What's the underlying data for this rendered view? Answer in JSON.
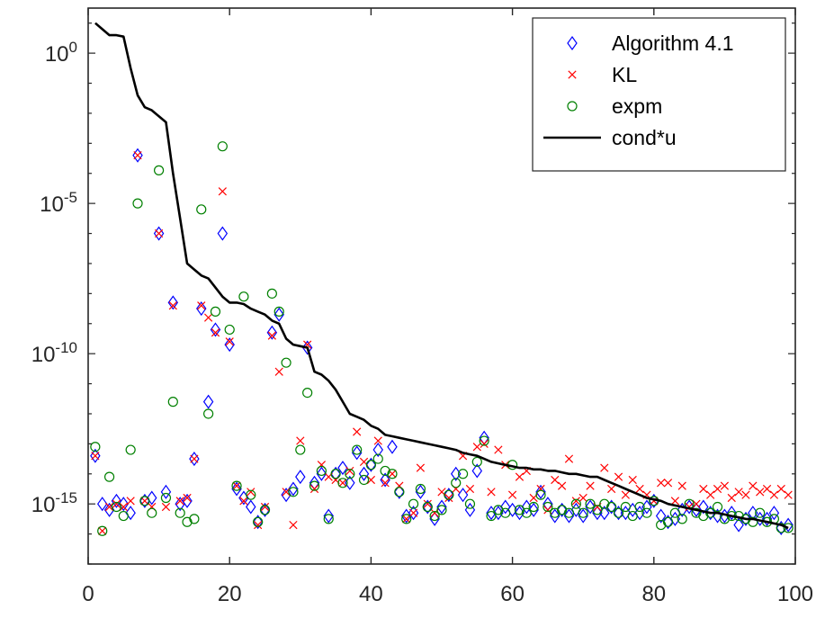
{
  "chart_data": {
    "type": "scatter",
    "title": "",
    "xlabel": "",
    "ylabel": "",
    "xlim": [
      0,
      100
    ],
    "ylim_log10": [
      -17,
      1.5
    ],
    "y_scale": "log",
    "grid": false,
    "legend_position": "top-right",
    "x_tick_labels": [
      "0",
      "20",
      "40",
      "60",
      "80",
      "100"
    ],
    "y_tick_labels": [
      {
        "base": "10",
        "exp": "0"
      },
      {
        "base": "10",
        "exp": "-5"
      },
      {
        "base": "10",
        "exp": "-10"
      },
      {
        "base": "10",
        "exp": "-15"
      }
    ],
    "series": [
      {
        "name": "Algorithm 4.1",
        "marker": "diamond",
        "color": "#0000ff",
        "log10_values": [
          -13.4,
          -15.0,
          -15.2,
          -14.9,
          -15.0,
          -15.3,
          -3.4,
          -14.9,
          -14.8,
          -6.0,
          -14.6,
          -8.3,
          -15.0,
          -14.9,
          -13.5,
          -8.5,
          -11.6,
          -9.2,
          -6.0,
          -9.7,
          -14.5,
          -14.8,
          -15.1,
          -15.6,
          -15.2,
          -9.3,
          -8.7,
          -14.7,
          -14.5,
          -14.1,
          -9.8,
          -14.3,
          -14.0,
          -15.4,
          -14.0,
          -13.8,
          -14.3,
          -13.3,
          -14.0,
          -13.7,
          -13.2,
          -14.2,
          -13.1,
          -14.6,
          -15.4,
          -15.3,
          -14.6,
          -15.1,
          -15.5,
          -15.1,
          -14.7,
          -14.0,
          -14.7,
          -15.2,
          -13.9,
          -12.8,
          -15.3,
          -15.3,
          -15.1,
          -15.2,
          -15.3,
          -15.1,
          -15.2,
          -14.6,
          -15.0,
          -15.4,
          -15.2,
          -15.4,
          -15.2,
          -15.4,
          -15.1,
          -15.3,
          -15.3,
          -15.1,
          -15.3,
          -15.3,
          -15.2,
          -15.3,
          -15.1,
          -14.9,
          -15.4,
          -15.6,
          -15.5,
          -15.2,
          -15.1,
          -15.2,
          -15.1,
          -15.3,
          -15.4,
          -15.4,
          -15.3,
          -15.7,
          -15.5,
          -15.3,
          -15.5,
          -15.5,
          -15.3,
          -15.8,
          -15.7
        ],
        "log10_values_by_x": {}
      },
      {
        "name": "KL",
        "marker": "x",
        "color": "#ff0000",
        "log10_values": [
          -13.4,
          -15.9,
          -15.1,
          -15.0,
          -15.1,
          -14.9,
          -3.4,
          -14.9,
          -15.1,
          -6.0,
          -15.1,
          -8.4,
          -14.9,
          -14.8,
          -13.5,
          -8.4,
          -8.8,
          -9.3,
          -4.6,
          -9.6,
          -14.4,
          -14.9,
          -14.6,
          -15.7,
          -15.1,
          -9.4,
          -10.6,
          -14.6,
          -15.7,
          -12.9,
          -9.7,
          -14.5,
          -13.7,
          -14.1,
          -14.2,
          -14.3,
          -13.9,
          -12.6,
          -13.6,
          -14.2,
          -12.9,
          -14.3,
          -14.0,
          -14.4,
          -15.5,
          -15.3,
          -13.8,
          -15.0,
          -15.3,
          -14.6,
          -14.8,
          -14.5,
          -13.4,
          -14.5,
          -13.1,
          -13.0,
          -14.6,
          -13.2,
          -13.7,
          -14.7,
          -14.1,
          -13.9,
          -14.8,
          -14.5,
          -15.2,
          -14.2,
          -14.4,
          -13.5,
          -14.9,
          -14.8,
          -14.4,
          -15.1,
          -13.8,
          -14.5,
          -14.1,
          -14.7,
          -14.2,
          -14.5,
          -14.7,
          -14.9,
          -14.3,
          -14.3,
          -14.9,
          -14.4,
          -15.1,
          -15.0,
          -14.5,
          -14.7,
          -14.5,
          -14.4,
          -14.8,
          -14.6,
          -14.7,
          -14.4,
          -14.6,
          -14.5,
          -14.7,
          -14.5,
          -14.7
        ],
        "log10_values_by_x": {}
      },
      {
        "name": "expm",
        "marker": "circle",
        "color": "#008000",
        "log10_values": [
          -13.1,
          -15.9,
          -14.1,
          -15.1,
          -15.4,
          -13.2,
          -5.0,
          -14.9,
          -15.3,
          -3.9,
          -14.8,
          -11.6,
          -15.3,
          -15.6,
          -15.5,
          -5.2,
          -12.0,
          -8.6,
          -3.1,
          -9.2,
          -14.4,
          -8.1,
          -14.7,
          -15.6,
          -15.2,
          -8.0,
          -8.6,
          -10.3,
          -14.6,
          -13.2,
          -11.3,
          -14.4,
          -13.9,
          -15.5,
          -14.0,
          -14.3,
          -14.0,
          -13.2,
          -14.2,
          -13.7,
          -13.5,
          -13.9,
          -14.0,
          -14.6,
          -15.5,
          -15.0,
          -14.5,
          -15.1,
          -15.4,
          -15.2,
          -14.7,
          -14.3,
          -14.0,
          -15.0,
          -13.6,
          -12.9,
          -15.4,
          -15.2,
          -15.3,
          -13.7,
          -15.2,
          -15.3,
          -15.1,
          -14.7,
          -15.1,
          -15.3,
          -15.2,
          -15.3,
          -15.0,
          -15.3,
          -15.0,
          -15.2,
          -15.0,
          -15.1,
          -15.3,
          -15.1,
          -15.4,
          -15.1,
          -15.3,
          -14.9,
          -15.7,
          -15.6,
          -15.3,
          -15.5,
          -15.0,
          -15.3,
          -15.4,
          -15.3,
          -15.1,
          -15.5,
          -15.4,
          -15.4,
          -15.5,
          -15.6,
          -15.3,
          -15.6,
          -15.5,
          -15.8,
          -15.8
        ],
        "log10_values_by_x": {}
      },
      {
        "name": "cond*u",
        "marker": "line",
        "color": "#000000",
        "log10_line": [
          [
            1,
            1.0
          ],
          [
            2,
            0.8
          ],
          [
            3,
            0.6
          ],
          [
            4,
            0.6
          ],
          [
            5,
            0.55
          ],
          [
            6,
            -0.5
          ],
          [
            7,
            -1.4
          ],
          [
            8,
            -1.8
          ],
          [
            9,
            -1.9
          ],
          [
            10,
            -2.1
          ],
          [
            11,
            -2.3
          ],
          [
            12,
            -4.0
          ],
          [
            13,
            -5.5
          ],
          [
            14,
            -7.0
          ],
          [
            15,
            -7.2
          ],
          [
            16,
            -7.4
          ],
          [
            17,
            -7.5
          ],
          [
            18,
            -7.8
          ],
          [
            19,
            -8.1
          ],
          [
            20,
            -8.3
          ],
          [
            21,
            -8.3
          ],
          [
            22,
            -8.35
          ],
          [
            23,
            -8.5
          ],
          [
            24,
            -8.6
          ],
          [
            25,
            -8.7
          ],
          [
            26,
            -8.9
          ],
          [
            27,
            -9.0
          ],
          [
            28,
            -9.5
          ],
          [
            29,
            -9.7
          ],
          [
            30,
            -9.75
          ],
          [
            31,
            -9.8
          ],
          [
            32,
            -10.6
          ],
          [
            33,
            -10.7
          ],
          [
            34,
            -10.9
          ],
          [
            35,
            -11.2
          ],
          [
            36,
            -11.6
          ],
          [
            37,
            -12.0
          ],
          [
            38,
            -12.1
          ],
          [
            39,
            -12.2
          ],
          [
            40,
            -12.4
          ],
          [
            41,
            -12.5
          ],
          [
            42,
            -12.7
          ],
          [
            43,
            -12.75
          ],
          [
            44,
            -12.8
          ],
          [
            45,
            -12.85
          ],
          [
            46,
            -12.9
          ],
          [
            47,
            -12.95
          ],
          [
            48,
            -13.0
          ],
          [
            49,
            -13.05
          ],
          [
            50,
            -13.1
          ],
          [
            51,
            -13.15
          ],
          [
            52,
            -13.2
          ],
          [
            53,
            -13.3
          ],
          [
            54,
            -13.35
          ],
          [
            55,
            -13.4
          ],
          [
            56,
            -13.5
          ],
          [
            57,
            -13.6
          ],
          [
            58,
            -13.65
          ],
          [
            59,
            -13.7
          ],
          [
            60,
            -13.75
          ],
          [
            61,
            -13.8
          ],
          [
            62,
            -13.8
          ],
          [
            63,
            -13.85
          ],
          [
            64,
            -13.85
          ],
          [
            65,
            -13.9
          ],
          [
            66,
            -13.9
          ],
          [
            67,
            -13.95
          ],
          [
            68,
            -14.0
          ],
          [
            69,
            -14.0
          ],
          [
            70,
            -14.05
          ],
          [
            71,
            -14.1
          ],
          [
            72,
            -14.1
          ],
          [
            73,
            -14.2
          ],
          [
            74,
            -14.3
          ],
          [
            75,
            -14.4
          ],
          [
            76,
            -14.5
          ],
          [
            77,
            -14.6
          ],
          [
            78,
            -14.7
          ],
          [
            79,
            -14.8
          ],
          [
            80,
            -14.85
          ],
          [
            81,
            -14.9
          ],
          [
            82,
            -15.0
          ],
          [
            83,
            -15.05
          ],
          [
            84,
            -15.1
          ],
          [
            85,
            -15.15
          ],
          [
            86,
            -15.2
          ],
          [
            87,
            -15.25
          ],
          [
            88,
            -15.3
          ],
          [
            89,
            -15.3
          ],
          [
            90,
            -15.35
          ],
          [
            91,
            -15.4
          ],
          [
            92,
            -15.45
          ],
          [
            93,
            -15.5
          ],
          [
            94,
            -15.5
          ],
          [
            95,
            -15.55
          ],
          [
            96,
            -15.6
          ],
          [
            97,
            -15.65
          ],
          [
            98,
            -15.7
          ],
          [
            99,
            -15.8
          ]
        ]
      }
    ]
  }
}
